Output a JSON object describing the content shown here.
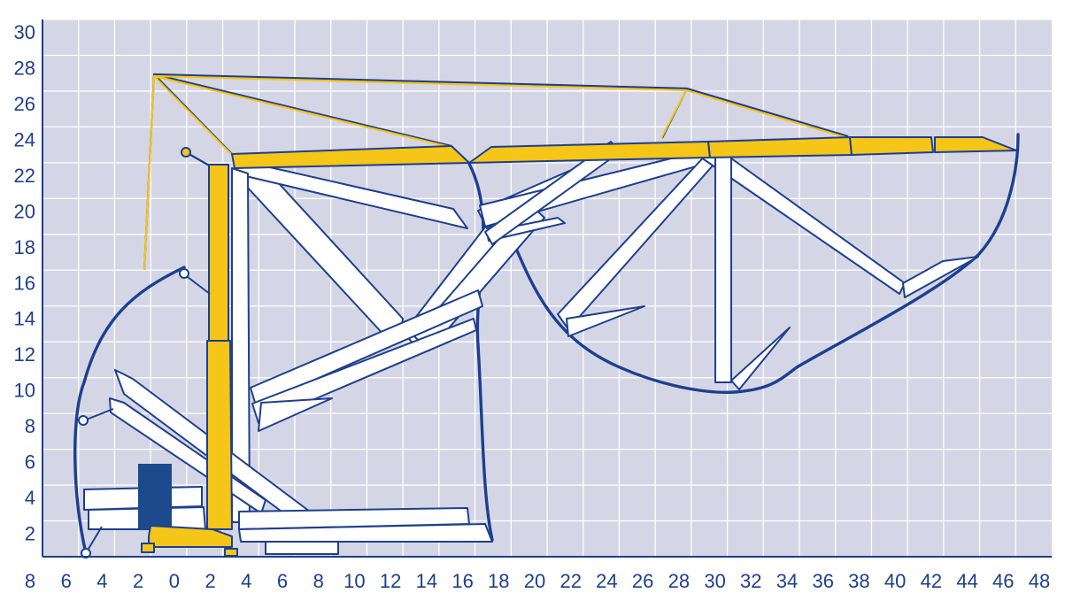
{
  "colors": {
    "plot_background": "#d4d6e6",
    "grid": "#ffffff",
    "axis_text": "#1d3f8f",
    "outline": "#1d3f8f",
    "crane_yellow": "#f5c518",
    "counterweight": "#1d4a8c",
    "arm_fill": "#ffffff"
  },
  "axes": {
    "x_tick_labels": [
      "8",
      "6",
      "4",
      "2",
      "0",
      "2",
      "4",
      "6",
      "8",
      "10",
      "12",
      "14",
      "16",
      "18",
      "20",
      "22",
      "24",
      "26",
      "28",
      "30",
      "32",
      "34",
      "36",
      "38",
      "40",
      "42",
      "44",
      "46",
      "48"
    ],
    "y_tick_labels": [
      "2",
      "4",
      "6",
      "8",
      "10",
      "12",
      "14",
      "16",
      "18",
      "20",
      "22",
      "24",
      "26",
      "28",
      "30"
    ],
    "grid": true
  },
  "diagram": {
    "type": "crane-working-range",
    "envelope_outline": "dark-blue",
    "jib_position": "horizontal-yellow",
    "folded_positions_color": "white"
  }
}
